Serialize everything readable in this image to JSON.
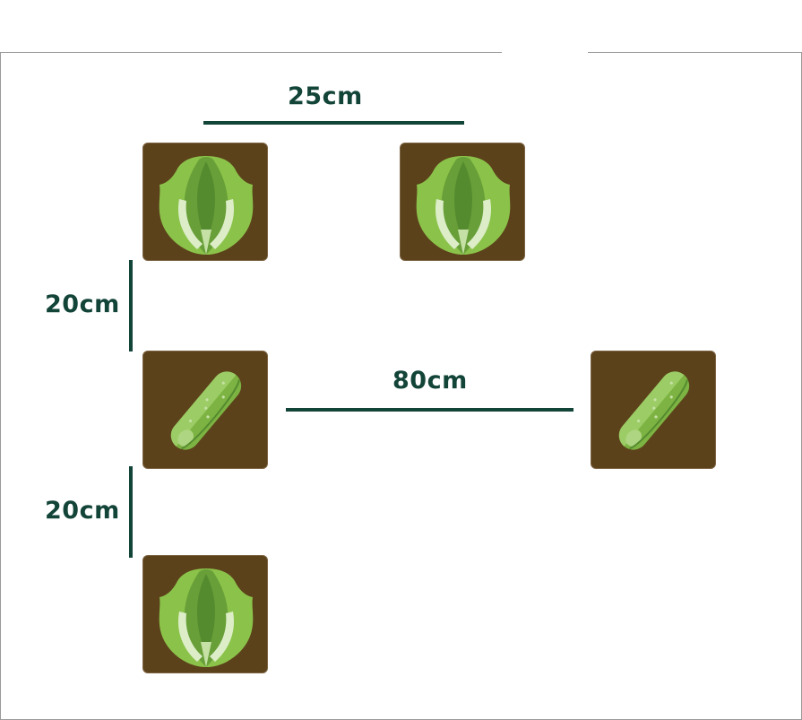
{
  "measurements": {
    "lettuce_spacing": "25cm",
    "row_spacing_top": "20cm",
    "cucumber_spacing": "80cm",
    "row_spacing_bottom": "20cm"
  },
  "plants": {
    "row1": [
      "lettuce",
      "lettuce"
    ],
    "row2": [
      "cucumber",
      "cucumber"
    ],
    "row3": [
      "lettuce"
    ]
  },
  "colors": {
    "soil": "#5c421b",
    "measure": "#134438",
    "lettuce_light": "#8bc34a",
    "lettuce_dark": "#558b2f",
    "cucumber": "#7cb342"
  }
}
